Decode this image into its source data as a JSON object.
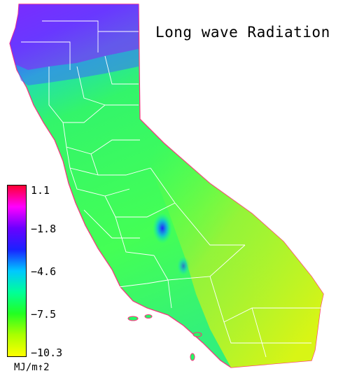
{
  "title": "Long wave Radiation",
  "legend": {
    "ticks": [
      "1.1",
      "−1.8",
      "−4.6",
      "−7.5",
      "−10.3"
    ],
    "unit": "MJ/m↑2",
    "colors": [
      "#ff0033",
      "#ff00ff",
      "#6a00ff",
      "#1a22ff",
      "#00c8ff",
      "#00ff99",
      "#22ff22",
      "#aaff00",
      "#ffff00"
    ]
  },
  "map": {
    "region_colors": {
      "north_purple": "#7a2cff",
      "north_blue": "#3a5cff",
      "cyan": "#22ddb0",
      "green": "#33f56a",
      "central_green": "#44ff55",
      "yellow_green": "#a8f230",
      "east_yellow": "#c8f520",
      "boundary": "#ffffff",
      "coast_edge": "#ff2a7a"
    }
  }
}
